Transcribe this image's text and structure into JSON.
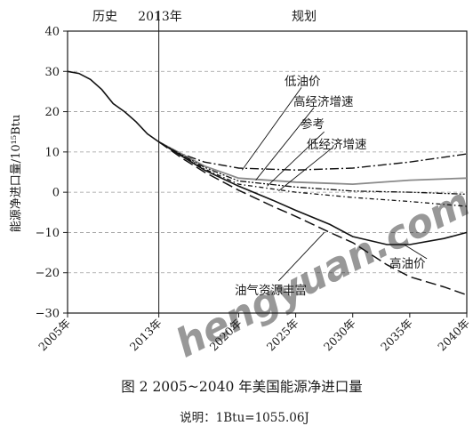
{
  "chart_data": {
    "type": "line",
    "title": "",
    "caption": "图 2  2005~2040 年美国能源净进口量",
    "note": "说明：1Btu=1055.06J",
    "xlabel": "",
    "ylabel": "能源净进口量/10¹⁵Btu",
    "xlim": [
      2005,
      2040
    ],
    "ylim": [
      -30,
      40
    ],
    "x_ticks": [
      "2005年",
      "2013年",
      "2020年",
      "2025年",
      "2030年",
      "2035年",
      "2040年"
    ],
    "y_ticks": [
      "40",
      "30",
      "20",
      "10",
      "0",
      "−10",
      "−20",
      "−30"
    ],
    "grid": "horizontal dashed",
    "period_labels": {
      "history": "历史",
      "divider": "2013年",
      "projection": "规划"
    },
    "divider_year": 2013,
    "watermark": "hengyuan.com",
    "historical": {
      "x": [
        2005,
        2006,
        2007,
        2008,
        2009,
        2010,
        2011,
        2012,
        2013
      ],
      "y": [
        30,
        29.5,
        28,
        25.5,
        22,
        20,
        17.5,
        14.5,
        12.5
      ]
    },
    "series": [
      {
        "name": "低油价",
        "style": "dash-dot",
        "x": [
          2013,
          2015,
          2017,
          2020,
          2025,
          2030,
          2035,
          2040
        ],
        "y": [
          12.5,
          9.5,
          7.5,
          6,
          5.5,
          6,
          7.5,
          9.5
        ]
      },
      {
        "name": "高经济增速",
        "style": "solid-gray",
        "x": [
          2013,
          2015,
          2017,
          2020,
          2025,
          2030,
          2035,
          2040
        ],
        "y": [
          12.5,
          9.5,
          6.5,
          3.5,
          2.5,
          2,
          3,
          3.5
        ]
      },
      {
        "name": "参考",
        "style": "dash-dot-dot",
        "x": [
          2013,
          2015,
          2017,
          2020,
          2025,
          2030,
          2035,
          2040
        ],
        "y": [
          12.5,
          9.3,
          6.2,
          2.8,
          1.3,
          0.3,
          0,
          -0.5
        ]
      },
      {
        "name": "低经济增速",
        "style": "dash-dot-long",
        "x": [
          2013,
          2015,
          2017,
          2020,
          2025,
          2030,
          2035,
          2040
        ],
        "y": [
          12.5,
          9.2,
          5.8,
          2,
          0,
          -1.3,
          -2.3,
          -3.5
        ]
      },
      {
        "name": "高油价",
        "style": "solid",
        "x": [
          2013,
          2015,
          2017,
          2020,
          2023,
          2025,
          2028,
          2030,
          2033,
          2035,
          2038,
          2040
        ],
        "y": [
          12.5,
          9,
          5.5,
          1.5,
          -2,
          -4.5,
          -8,
          -11,
          -13,
          -13,
          -11.5,
          -10
        ]
      },
      {
        "name": "油气资源丰富",
        "style": "long-dash",
        "x": [
          2013,
          2015,
          2017,
          2020,
          2023,
          2025,
          2028,
          2030,
          2033,
          2035,
          2038,
          2040
        ],
        "y": [
          12.5,
          8.5,
          5,
          0.5,
          -3.5,
          -6,
          -10,
          -12.5,
          -18,
          -21,
          -23.5,
          -25.5
        ]
      }
    ],
    "annotations": [
      {
        "text": "低油价",
        "series": "低油价"
      },
      {
        "text": "高经济增速",
        "series": "高经济增速"
      },
      {
        "text": "参考",
        "series": "参考"
      },
      {
        "text": "低经济增速",
        "series": "低经济增速"
      },
      {
        "text": "高油价",
        "series": "高油价"
      },
      {
        "text": "油气资源丰富",
        "series": "油气资源丰富"
      }
    ]
  }
}
